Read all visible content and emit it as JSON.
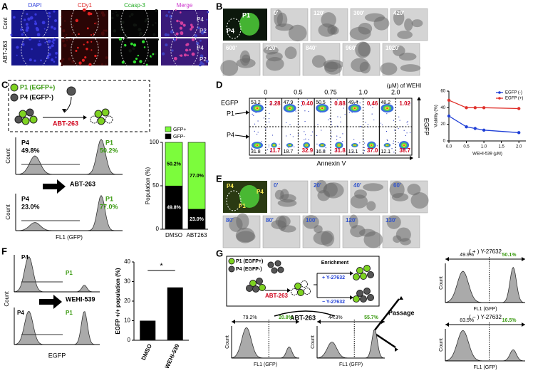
{
  "panel_A": {
    "label": "A",
    "columns": [
      "DAPI",
      "CDy1",
      "Ccasp-3",
      "Merge"
    ],
    "rows": [
      "Cont",
      "ABT-263"
    ],
    "merge_labels": [
      [
        "P4",
        "P2"
      ],
      [
        "P4",
        "P2"
      ]
    ]
  },
  "panel_B": {
    "label": "B",
    "inset_labels": [
      "P1",
      "P4"
    ],
    "times": [
      "0'",
      "120'",
      "300'",
      "420'",
      "600'",
      "720'",
      "840'",
      "960'",
      "1020'"
    ]
  },
  "panel_C": {
    "label": "C",
    "legend": [
      "P1 (EGFP+)",
      "P4 (EGFP-)"
    ],
    "treatment": "ABT-263",
    "histograms": [
      {
        "left": "P4",
        "left_pct": "49.8%",
        "right": "P1",
        "right_pct": "50.2%",
        "y_label": "Count"
      },
      {
        "left": "P4",
        "left_pct": "23.0%",
        "right": "P1",
        "right_pct": "77.0%",
        "y_label": "Count"
      }
    ],
    "arrow_label": "ABT-263",
    "x_label": "FL1 (GFP)",
    "chart": {
      "type": "stacked_bar",
      "y_label": "Population (%)",
      "categories": [
        "DMSO",
        "ABT263"
      ],
      "series": [
        {
          "name": "GFP-",
          "color": "#000000",
          "values": [
            49.8,
            23.0
          ],
          "value_labels": [
            "49.8%",
            "23.0%"
          ]
        },
        {
          "name": "GFP+",
          "color": "#7cfc3c",
          "values": [
            50.2,
            77.0
          ],
          "value_labels": [
            "50.2%",
            "77.0%"
          ]
        }
      ],
      "ylim": [
        0,
        100
      ],
      "yticks": [
        0,
        50,
        100
      ]
    }
  },
  "panel_D": {
    "label": "D",
    "unit_label": "(μM) of WEHI",
    "concentrations": [
      "0",
      "0.5",
      "0.75",
      "1.0",
      "2.0"
    ],
    "y_label": "EGFP",
    "gates": [
      "P1",
      "P4"
    ],
    "x_label": "Annexin V",
    "side_label": "EGFP",
    "quadrants": [
      [
        "53.2",
        "3.28",
        "31.8",
        "11.7"
      ],
      [
        "47.9",
        "0.40",
        "18.7",
        "32.9"
      ],
      [
        "50.5",
        "0.88",
        "16.8",
        "31.8"
      ],
      [
        "49.4",
        "0.46",
        "13.1",
        "37.0"
      ],
      [
        "48.2",
        "1.02",
        "12.1",
        "38.7"
      ]
    ],
    "chart": {
      "type": "line",
      "x_label": "WEHI-539 (μM)",
      "y_label": "Viability (%)",
      "x": [
        0,
        0.5,
        0.75,
        1.0,
        2.0
      ],
      "series": [
        {
          "name": "EGFP (-)",
          "color": "#1f3fd6",
          "values": [
            30,
            17,
            15,
            13,
            10
          ]
        },
        {
          "name": "EGFP (+)",
          "color": "#e0302a",
          "values": [
            49,
            40,
            40,
            40,
            39
          ]
        }
      ],
      "xlim": [
        0,
        2.2
      ],
      "xticks": [
        {
          "value": 0,
          "label": "0.0"
        },
        0.5,
        {
          "value": 1,
          "label": "1.0"
        },
        1.5,
        {
          "value": 2,
          "label": "2.0"
        }
      ],
      "ylim": [
        0,
        60
      ],
      "yticks": [
        0,
        20,
        40,
        60
      ],
      "legend": "upper right"
    }
  },
  "panel_E": {
    "label": "E",
    "inset_labels": [
      "P4",
      "P4",
      "P1"
    ],
    "times": [
      "0'",
      "20'",
      "40'",
      "60'",
      "80'",
      "80'",
      "100'",
      "120'",
      "130'"
    ]
  },
  "panel_F": {
    "label": "F",
    "histograms": [
      {
        "left": "P4",
        "right": "P1"
      },
      {
        "left": "P4",
        "right": "P1"
      }
    ],
    "arrow_label": "WEHI-539",
    "x_label": "EGFP",
    "y_label": "Count",
    "chart": {
      "type": "bar",
      "y_label": "EGFP +/+ population (%)",
      "categories": [
        "DMSO",
        "WEHI-539"
      ],
      "values": [
        10,
        27
      ],
      "color": "#000000",
      "ylim": [
        0,
        40
      ],
      "yticks": [
        0,
        10,
        20,
        30,
        40
      ],
      "annotation": "*"
    }
  },
  "panel_G": {
    "label": "G",
    "legend": [
      "P1 (EGFP+)",
      "P4 (EGFP-)"
    ],
    "treatment": "ABT-263",
    "enrichment": "Enrichment",
    "plus": "+ Y-27632",
    "minus": "− Y-27632",
    "arrow_label": "ABT-263",
    "passage": "Passage",
    "histograms": [
      {
        "left_pct": "79.2%",
        "right_pct": "20.8%"
      },
      {
        "left_pct": "44.3%",
        "right_pct": "55.7%"
      },
      {
        "title": "( + ) Y-27632",
        "left_pct": "49.9%",
        "right_pct": "50.1%"
      },
      {
        "title": "( − ) Y-27632",
        "left_pct": "83.5%",
        "right_pct": "16.5%"
      }
    ],
    "y_label": "Count",
    "x_label": "FL1 (GFP)"
  }
}
